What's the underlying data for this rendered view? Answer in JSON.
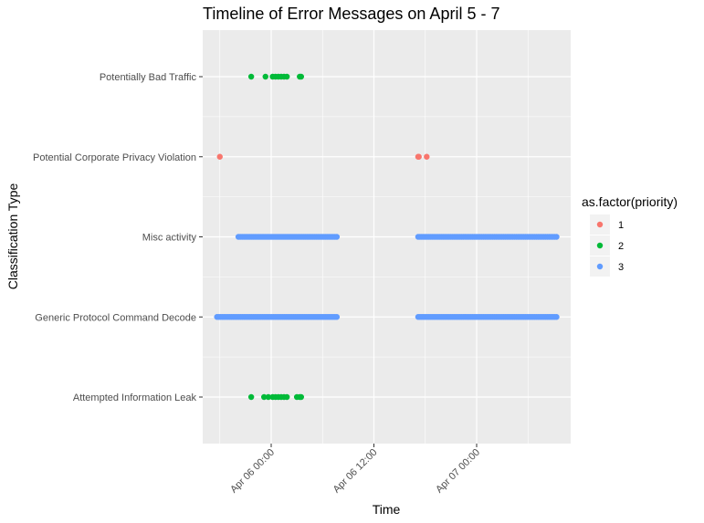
{
  "chart_data": {
    "type": "scatter",
    "title": "Timeline of Error Messages on April 5 - 7",
    "xlabel": "Time",
    "ylabel": "Classification Type",
    "x_type": "datetime",
    "xlim": [
      "2023-04-05 17:40",
      "2023-04-07 10:10"
    ],
    "x_ticks": [
      {
        "value": "2023-04-06 00:00",
        "label": "Apr 06 00:00"
      },
      {
        "value": "2023-04-06 12:00",
        "label": "Apr 06 12:00"
      },
      {
        "value": "2023-04-07 00:00",
        "label": "Apr 07 00:00"
      }
    ],
    "categories": [
      "Attempted Information Leak",
      "Generic Protocol Command Decode",
      "Misc activity",
      "Potential Corporate Privacy Violation",
      "Potentially Bad Traffic"
    ],
    "legend": {
      "title": "as.factor(priority)",
      "placement": "right",
      "entries": [
        {
          "label": "1",
          "color": "#F8766D"
        },
        {
          "label": "2",
          "color": "#00BA38"
        },
        {
          "label": "3",
          "color": "#619CFF"
        }
      ]
    },
    "grid": true,
    "background": "#EBEBEB",
    "series": [
      {
        "name": "1",
        "color": "#F8766D",
        "points": [
          {
            "x": "2023-04-05 18:00",
            "y": "Potential Corporate Privacy Violation"
          },
          {
            "x": "2023-04-06 17:10",
            "y": "Potential Corporate Privacy Violation"
          },
          {
            "x": "2023-04-06 17:15",
            "y": "Potential Corporate Privacy Violation"
          },
          {
            "x": "2023-04-06 18:10",
            "y": "Potential Corporate Privacy Violation"
          }
        ]
      },
      {
        "name": "2",
        "color": "#00BA38",
        "points": [
          {
            "x": "2023-04-05 21:40",
            "y": "Potentially Bad Traffic"
          },
          {
            "x": "2023-04-05 23:20",
            "y": "Potentially Bad Traffic"
          },
          {
            "x": "2023-04-06 00:10",
            "y": "Potentially Bad Traffic"
          },
          {
            "x": "2023-04-06 00:30",
            "y": "Potentially Bad Traffic"
          },
          {
            "x": "2023-04-06 00:50",
            "y": "Potentially Bad Traffic"
          },
          {
            "x": "2023-04-06 01:10",
            "y": "Potentially Bad Traffic"
          },
          {
            "x": "2023-04-06 01:30",
            "y": "Potentially Bad Traffic"
          },
          {
            "x": "2023-04-06 01:50",
            "y": "Potentially Bad Traffic"
          },
          {
            "x": "2023-04-06 03:20",
            "y": "Potentially Bad Traffic"
          },
          {
            "x": "2023-04-06 03:30",
            "y": "Potentially Bad Traffic"
          },
          {
            "x": "2023-04-05 21:40",
            "y": "Attempted Information Leak"
          },
          {
            "x": "2023-04-05 23:10",
            "y": "Attempted Information Leak"
          },
          {
            "x": "2023-04-05 23:40",
            "y": "Attempted Information Leak"
          },
          {
            "x": "2023-04-06 00:10",
            "y": "Attempted Information Leak"
          },
          {
            "x": "2023-04-06 00:30",
            "y": "Attempted Information Leak"
          },
          {
            "x": "2023-04-06 00:50",
            "y": "Attempted Information Leak"
          },
          {
            "x": "2023-04-06 01:10",
            "y": "Attempted Information Leak"
          },
          {
            "x": "2023-04-06 01:30",
            "y": "Attempted Information Leak"
          },
          {
            "x": "2023-04-06 01:50",
            "y": "Attempted Information Leak"
          },
          {
            "x": "2023-04-06 03:00",
            "y": "Attempted Information Leak"
          },
          {
            "x": "2023-04-06 03:20",
            "y": "Attempted Information Leak"
          },
          {
            "x": "2023-04-06 03:30",
            "y": "Attempted Information Leak"
          }
        ]
      },
      {
        "name": "3",
        "color": "#619CFF",
        "ranges": [
          {
            "y": "Misc activity",
            "start": "2023-04-05 20:10",
            "end": "2023-04-06 07:40"
          },
          {
            "y": "Misc activity",
            "start": "2023-04-06 17:10",
            "end": "2023-04-07 09:20"
          },
          {
            "y": "Generic Protocol Command Decode",
            "start": "2023-04-05 17:40",
            "end": "2023-04-06 07:40"
          },
          {
            "y": "Generic Protocol Command Decode",
            "start": "2023-04-06 17:10",
            "end": "2023-04-07 09:20"
          }
        ]
      }
    ]
  }
}
